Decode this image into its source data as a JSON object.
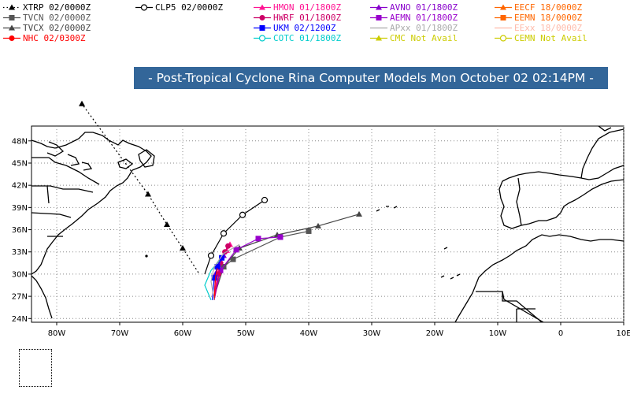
{
  "title": "- Post-Tropical Cyclone Rina Computer Models Mon October 02 02:14PM -",
  "legend": [
    {
      "id": "xtrp",
      "label": "XTRP 02/0000Z",
      "color": "#000000",
      "marker": "triangle",
      "line": "dotted"
    },
    {
      "id": "tvcn",
      "label": "TVCN 02/0000Z",
      "color": "#555555",
      "marker": "square",
      "line": "solid"
    },
    {
      "id": "tvcx",
      "label": "TVCX 02/0000Z",
      "color": "#444444",
      "marker": "triangle",
      "line": "solid"
    },
    {
      "id": "nhc",
      "label": "NHC 02/0300Z",
      "color": "#ff0000",
      "marker": "circle",
      "line": "solid"
    },
    {
      "id": "clp5",
      "label": "CLP5 02/0000Z",
      "color": "#000000",
      "marker": "open-circle",
      "line": "solid"
    },
    {
      "id": "hmon",
      "label": "HMON 01/1800Z",
      "color": "#ff1493",
      "marker": "triangle",
      "line": "solid"
    },
    {
      "id": "hwrf",
      "label": "HWRF 01/1800Z",
      "color": "#cc0066",
      "marker": "circle",
      "line": "solid"
    },
    {
      "id": "ukm",
      "label": "UKM 02/1200Z",
      "color": "#0000ff",
      "marker": "square",
      "line": "solid"
    },
    {
      "id": "cotc",
      "label": "COTC 01/1800Z",
      "color": "#00cccc",
      "marker": "open-circle",
      "line": "solid"
    },
    {
      "id": "avno",
      "label": "AVNO 01/1800Z",
      "color": "#8800cc",
      "marker": "triangle",
      "line": "solid"
    },
    {
      "id": "aemn",
      "label": "AEMN 01/1800Z",
      "color": "#9900cc",
      "marker": "square",
      "line": "solid"
    },
    {
      "id": "apxx",
      "label": "APxx 01/1800Z",
      "color": "#aaaaaa",
      "marker": "none",
      "line": "solid"
    },
    {
      "id": "cmc",
      "label": "CMC Not Avail",
      "color": "#cccc00",
      "marker": "triangle",
      "line": "solid"
    },
    {
      "id": "eecf",
      "label": "EECF 18/0000Z",
      "color": "#ff6600",
      "marker": "triangle",
      "line": "solid"
    },
    {
      "id": "eemn",
      "label": "EEMN 18/0000Z",
      "color": "#ff6600",
      "marker": "square",
      "line": "solid"
    },
    {
      "id": "eexx",
      "label": "EExx 18/0000Z",
      "color": "#ffbbaa",
      "marker": "none",
      "line": "solid"
    },
    {
      "id": "cemn",
      "label": "CEMN Not Avail",
      "color": "#cccc00",
      "marker": "open-circle",
      "line": "solid"
    }
  ],
  "map": {
    "lon_range": [
      -84,
      10
    ],
    "lat_range": [
      23.5,
      50
    ],
    "lat_ticks": [
      {
        "v": 24,
        "label": "24N"
      },
      {
        "v": 27,
        "label": "27N"
      },
      {
        "v": 30,
        "label": "30N"
      },
      {
        "v": 33,
        "label": "33N"
      },
      {
        "v": 36,
        "label": "36N"
      },
      {
        "v": 39,
        "label": "39N"
      },
      {
        "v": 42,
        "label": "42N"
      },
      {
        "v": 45,
        "label": "45N"
      },
      {
        "v": 48,
        "label": "48N"
      }
    ],
    "lon_ticks": [
      {
        "v": -80,
        "label": "80W"
      },
      {
        "v": -70,
        "label": "70W"
      },
      {
        "v": -60,
        "label": "60W"
      },
      {
        "v": -50,
        "label": "50W"
      },
      {
        "v": -40,
        "label": "40W"
      },
      {
        "v": -30,
        "label": "30W"
      },
      {
        "v": -20,
        "label": "20W"
      },
      {
        "v": -10,
        "label": "10W"
      },
      {
        "v": 0,
        "label": "0"
      },
      {
        "v": 10,
        "label": "10E"
      }
    ]
  },
  "tracks": [
    {
      "id": "xtrp",
      "color": "#000000",
      "dash": "2,3",
      "marker": "triangle",
      "points": [
        [
          -57.5,
          30.2
        ],
        [
          -60,
          33.5
        ],
        [
          -62.5,
          36.7
        ],
        [
          -65.5,
          40.8
        ],
        [
          -76,
          53
        ]
      ]
    },
    {
      "id": "clp5",
      "color": "#000000",
      "marker": "open-circle",
      "points": [
        [
          -56.5,
          30
        ],
        [
          -55.5,
          32.5
        ],
        [
          -53.5,
          35.5
        ],
        [
          -50.5,
          38
        ],
        [
          -47,
          40
        ]
      ]
    },
    {
      "id": "tvcx",
      "color": "#444444",
      "marker": "triangle",
      "points": [
        [
          -55,
          27
        ],
        [
          -53.5,
          31
        ],
        [
          -51,
          33.5
        ],
        [
          -45,
          35.3
        ],
        [
          -38.5,
          36.5
        ],
        [
          -32,
          38.1
        ]
      ]
    },
    {
      "id": "tvcn",
      "color": "#555555",
      "marker": "square",
      "points": [
        [
          -55,
          27
        ],
        [
          -53.5,
          31
        ],
        [
          -52,
          32
        ],
        [
          -44.5,
          35
        ],
        [
          -40,
          35.8
        ]
      ]
    },
    {
      "id": "aemn",
      "color": "#9900cc",
      "marker": "square",
      "points": [
        [
          -55,
          26.5
        ],
        [
          -54,
          30.5
        ],
        [
          -51.5,
          33.3
        ],
        [
          -48,
          34.8
        ],
        [
          -44.5,
          35
        ]
      ]
    },
    {
      "id": "hmon",
      "color": "#ff1493",
      "marker": "triangle",
      "points": [
        [
          -55,
          26.5
        ],
        [
          -54.5,
          30
        ],
        [
          -54,
          31.8
        ],
        [
          -53,
          33.2
        ],
        [
          -52.5,
          34
        ]
      ]
    },
    {
      "id": "hwrf",
      "color": "#cc0066",
      "marker": "circle",
      "points": [
        [
          -55,
          26.5
        ],
        [
          -54.3,
          30
        ],
        [
          -54,
          31.5
        ],
        [
          -53.3,
          33
        ],
        [
          -52.8,
          33.8
        ]
      ]
    },
    {
      "id": "cotc",
      "color": "#00cccc",
      "marker": "none",
      "points": [
        [
          -55.5,
          26.5
        ],
        [
          -56.5,
          28.5
        ],
        [
          -55.5,
          30.5
        ],
        [
          -53.5,
          32.5
        ]
      ]
    },
    {
      "id": "avno",
      "color": "#8800cc",
      "marker": "triangle",
      "points": [
        [
          -55,
          26.5
        ],
        [
          -54.8,
          30
        ],
        [
          -54.3,
          31.2
        ],
        [
          -53.5,
          32.5
        ]
      ]
    },
    {
      "id": "ukm",
      "color": "#0000ff",
      "marker": "square",
      "points": [
        [
          -55.3,
          26.5
        ],
        [
          -55,
          29.5
        ],
        [
          -54.5,
          31
        ],
        [
          -53.8,
          32.2
        ]
      ]
    },
    {
      "id": "nhc",
      "color": "#ff0000",
      "marker": "none",
      "points": [
        [
          -55,
          26.5
        ],
        [
          -54.8,
          29.5
        ],
        [
          -54.5,
          30.8
        ]
      ]
    },
    {
      "id": "apxx",
      "color": "#aaaaaa",
      "marker": "none",
      "points": [
        [
          -55,
          26.5
        ],
        [
          -55.5,
          29
        ],
        [
          -55,
          31
        ],
        [
          -53.5,
          32.8
        ],
        [
          -51,
          34
        ]
      ]
    }
  ],
  "colors": {
    "banner": "#336699",
    "coast": "#000000",
    "grid": "#888888"
  }
}
